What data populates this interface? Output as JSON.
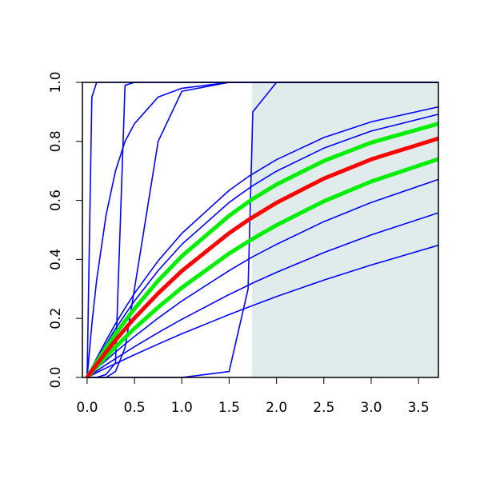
{
  "chart_data": {
    "type": "line",
    "x": [
      0,
      0.05,
      0.1,
      0.2,
      0.3,
      0.4,
      0.5,
      0.75,
      1,
      1.5,
      1.7,
      1.75,
      2,
      2.5,
      3,
      3.71
    ],
    "xlim": [
      -0.05,
      3.71
    ],
    "ylim": [
      0,
      1
    ],
    "xticks": [
      {
        "value": 0,
        "label": "0.0"
      },
      0.5,
      {
        "value": 1,
        "label": "1.0"
      },
      1.5,
      {
        "value": 2,
        "label": "2.0"
      },
      2.5,
      {
        "value": 3,
        "label": "3.0"
      },
      3.5
    ],
    "yticks": [
      {
        "value": 0,
        "label": "0.0"
      },
      0.2,
      0.4,
      0.6,
      0.8,
      {
        "value": 1,
        "label": "1.0"
      }
    ],
    "shaded_region": {
      "xmin": 1.74,
      "xmax": 3.71,
      "color": "#e0ecec"
    },
    "series": [
      {
        "color": "#0000ff",
        "values": [
          0,
          0.95,
          1,
          1,
          1,
          1,
          1,
          1,
          1,
          1,
          1,
          1,
          1,
          1,
          1,
          1
        ]
      },
      {
        "color": "#0000ff",
        "values": [
          0,
          0.18,
          0.33,
          0.55,
          0.7,
          0.8,
          0.86,
          0.95,
          0.98,
          1,
          1,
          1,
          1,
          1,
          1,
          1
        ]
      },
      {
        "color": "#0000ff",
        "values": [
          0,
          0,
          0,
          0.01,
          0.05,
          0.99,
          1,
          1,
          1,
          1,
          1,
          1,
          1,
          1,
          1,
          1
        ]
      },
      {
        "color": "#0000ff",
        "values": [
          0,
          0,
          0,
          0,
          0.02,
          0.1,
          0.3,
          0.8,
          0.97,
          1,
          1,
          1,
          1,
          1,
          1,
          1
        ]
      },
      {
        "color": "#0000ff",
        "values": [
          0,
          0,
          0,
          0,
          0,
          0,
          0,
          0,
          0,
          0.02,
          0.3,
          0.9,
          1,
          1,
          1,
          1
        ]
      },
      {
        "color": "#0000ff",
        "values": [
          0,
          0.033,
          0.065,
          0.125,
          0.182,
          0.235,
          0.285,
          0.395,
          0.488,
          0.634,
          0.68,
          0.69,
          0.738,
          0.813,
          0.866,
          0.917
        ]
      },
      {
        "color": "#0000ff",
        "values": [
          0,
          0.03,
          0.058,
          0.113,
          0.165,
          0.213,
          0.259,
          0.362,
          0.451,
          0.593,
          0.639,
          0.65,
          0.699,
          0.777,
          0.835,
          0.892
        ]
      },
      {
        "color": "#0000ff",
        "values": [
          0,
          0.015,
          0.03,
          0.058,
          0.086,
          0.113,
          0.139,
          0.201,
          0.259,
          0.362,
          0.4,
          0.409,
          0.451,
          0.528,
          0.593,
          0.671
        ]
      },
      {
        "color": "#0000ff",
        "values": [
          0,
          0.011,
          0.022,
          0.043,
          0.064,
          0.084,
          0.104,
          0.152,
          0.197,
          0.281,
          0.312,
          0.32,
          0.356,
          0.423,
          0.483,
          0.558
        ]
      },
      {
        "color": "#0000ff",
        "values": [
          0,
          0.008,
          0.016,
          0.032,
          0.047,
          0.062,
          0.077,
          0.113,
          0.148,
          0.213,
          0.238,
          0.244,
          0.274,
          0.33,
          0.381,
          0.448
        ]
      },
      {
        "color": "#00ee00",
        "values": [
          0,
          0.026,
          0.052,
          0.101,
          0.147,
          0.191,
          0.233,
          0.328,
          0.411,
          0.548,
          0.594,
          0.605,
          0.654,
          0.734,
          0.796,
          0.86
        ]
      },
      {
        "color": "#00ee00",
        "values": [
          0,
          0.018,
          0.036,
          0.07,
          0.103,
          0.135,
          0.166,
          0.238,
          0.304,
          0.42,
          0.46,
          0.47,
          0.516,
          0.597,
          0.664,
          0.74
        ]
      },
      {
        "color": "#ff0000",
        "values": [
          0,
          0.022,
          0.044,
          0.086,
          0.126,
          0.164,
          0.201,
          0.285,
          0.361,
          0.489,
          0.533,
          0.543,
          0.592,
          0.674,
          0.739,
          0.81
        ]
      }
    ]
  }
}
